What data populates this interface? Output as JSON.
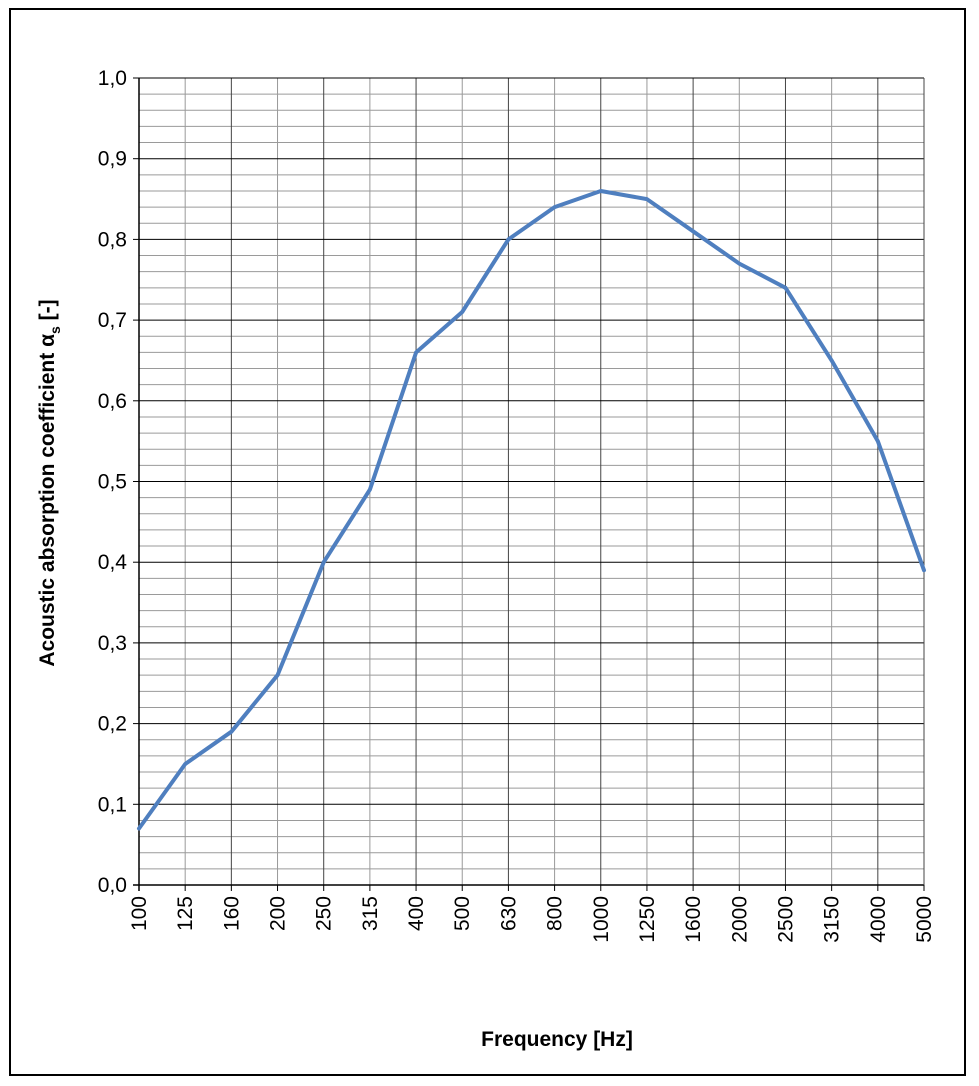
{
  "chart_data": {
    "type": "line",
    "title": "",
    "xlabel": "Frequency [Hz]",
    "ylabel": "Acoustic absorption coefficient α",
    "ylabel_subscript": "s",
    "ylabel_suffix": " [-]",
    "categories": [
      "100",
      "125",
      "160",
      "200",
      "250",
      "315",
      "400",
      "500",
      "630",
      "800",
      "1000",
      "1250",
      "1600",
      "2000",
      "2500",
      "3150",
      "4000",
      "5000"
    ],
    "series": [
      {
        "values": [
          0.07,
          0.15,
          0.19,
          0.26,
          0.4,
          0.49,
          0.66,
          0.71,
          0.8,
          0.84,
          0.86,
          0.85,
          0.81,
          0.77,
          0.74,
          0.65,
          0.55,
          0.39
        ]
      }
    ],
    "ylim": [
      0,
      1.0
    ],
    "y_ticks": [
      "0,0",
      "0,1",
      "0,2",
      "0,3",
      "0,4",
      "0,5",
      "0,6",
      "0,7",
      "0,8",
      "0,9",
      "1,0"
    ],
    "grid": true,
    "minor_y_grid_step": 0.02,
    "line_color": "#4f7fbf",
    "grid_color_major": "#000000",
    "grid_color_minor": "#9a9a9a"
  }
}
